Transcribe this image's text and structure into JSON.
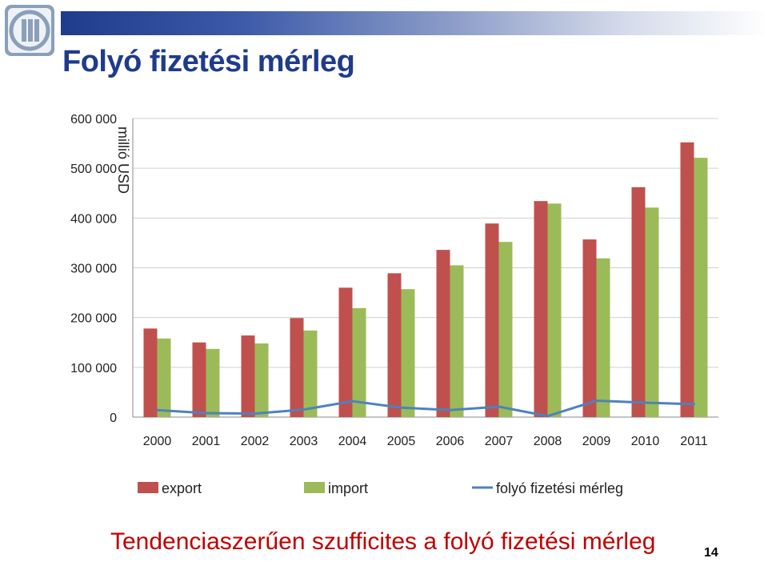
{
  "slide": {
    "title": "Folyó fizetési mérleg",
    "conclusion": "Tendenciaszerűen szufficites a folyó fizetési mérleg",
    "page_number": "14"
  },
  "colors": {
    "export": "#c0504d",
    "import": "#9bbb59",
    "balance": "#4f81bd",
    "title": "#1f3b8c",
    "conclusion": "#c00000"
  },
  "chart_data": {
    "type": "bar",
    "ylabel": "millió USD",
    "ylim": [
      0,
      600000
    ],
    "y_ticks": [
      0,
      100000,
      200000,
      300000,
      400000,
      500000,
      600000
    ],
    "y_tick_labels": [
      "0",
      "100 000",
      "200 000",
      "300 000",
      "400 000",
      "500 000",
      "600 000"
    ],
    "grid": true,
    "legend_position": "bottom",
    "categories": [
      "2000",
      "2001",
      "2002",
      "2003",
      "2004",
      "2005",
      "2006",
      "2007",
      "2008",
      "2009",
      "2010",
      "2011"
    ],
    "series": [
      {
        "name": "export",
        "type": "bar",
        "values": [
          178000,
          150000,
          164000,
          199000,
          260000,
          289000,
          336000,
          389000,
          434000,
          357000,
          462000,
          552000
        ]
      },
      {
        "name": "import",
        "type": "bar",
        "values": [
          158000,
          137000,
          148000,
          174000,
          219000,
          257000,
          305000,
          352000,
          429000,
          319000,
          421000,
          521000
        ]
      },
      {
        "name": "folyó fizetési mérleg",
        "type": "line",
        "values": [
          14000,
          8000,
          7000,
          15000,
          32000,
          19000,
          14000,
          21000,
          2000,
          33000,
          29000,
          26000
        ]
      }
    ]
  }
}
